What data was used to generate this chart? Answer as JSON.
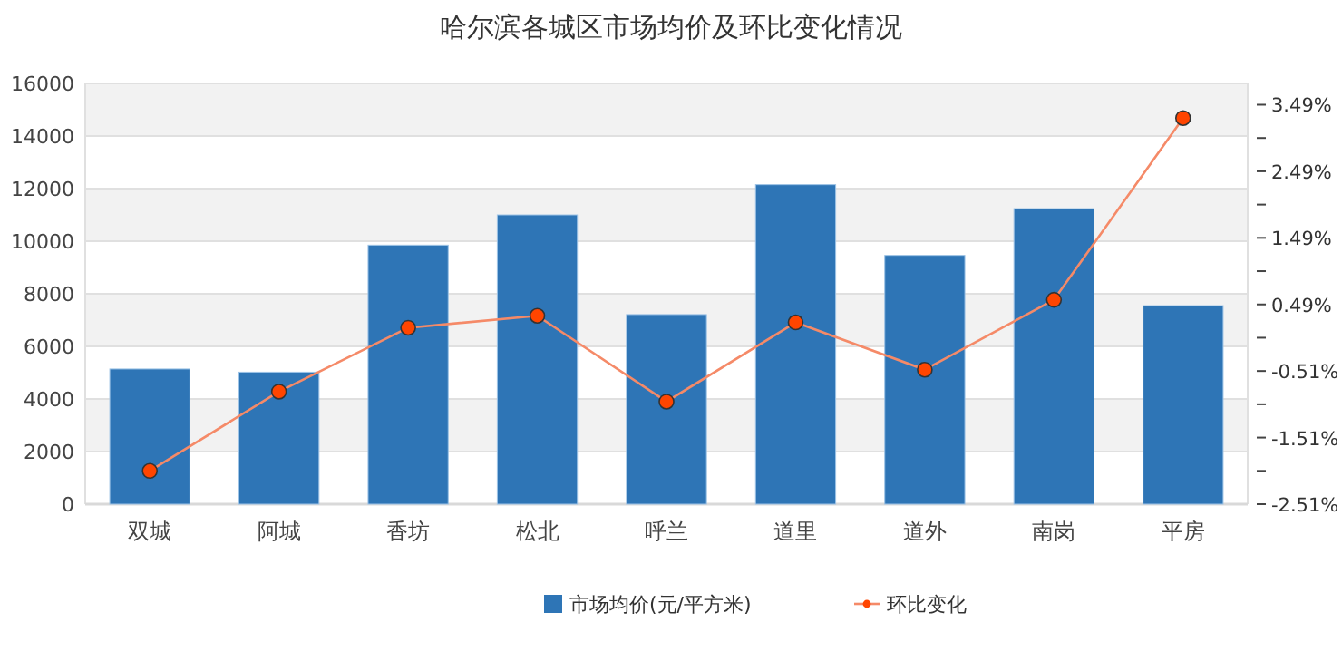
{
  "chart_data": {
    "type": "bar",
    "title": "哈尔滨各城区市场均价及环比变化情况",
    "categories": [
      "双城",
      "阿城",
      "香坊",
      "松北",
      "呼兰",
      "道里",
      "道外",
      "南岗",
      "平房"
    ],
    "series": [
      {
        "name": "市场均价(元/平方米)",
        "color": "#2e75b6",
        "values": [
          5140,
          5020,
          9850,
          11000,
          7210,
          12150,
          9460,
          11240,
          7550
        ]
      },
      {
        "name": "环比变化",
        "type": "line",
        "axis": "y2",
        "color": "#ff4500",
        "values": [
          -2.01,
          -0.82,
          0.14,
          0.32,
          -0.97,
          0.22,
          -0.49,
          0.56,
          3.29
        ]
      }
    ],
    "ylim": [
      0,
      16000
    ],
    "yticks": [
      0,
      2000,
      4000,
      6000,
      8000,
      10000,
      12000,
      14000,
      16000
    ],
    "y2lim": [
      -2.51,
      3.81
    ],
    "y2ticks": [
      {
        "value": -2.51,
        "label": "-2.51%"
      },
      {
        "value": -2.01,
        "label": null
      },
      {
        "value": -1.51,
        "label": "-1.51%"
      },
      {
        "value": -1.01,
        "label": null
      },
      {
        "value": -0.51,
        "label": "-0.51%"
      },
      {
        "value": -0.01,
        "label": null
      },
      {
        "value": 0.49,
        "label": "0.49%"
      },
      {
        "value": 0.99,
        "label": null
      },
      {
        "value": 1.49,
        "label": "1.49%"
      },
      {
        "value": 1.99,
        "label": null
      },
      {
        "value": 2.49,
        "label": "2.49%"
      },
      {
        "value": 2.99,
        "label": null
      },
      {
        "value": 3.49,
        "label": "3.49%"
      }
    ],
    "grid": "y",
    "legend": "bottom",
    "marker": "circle",
    "line_style": "solid"
  }
}
